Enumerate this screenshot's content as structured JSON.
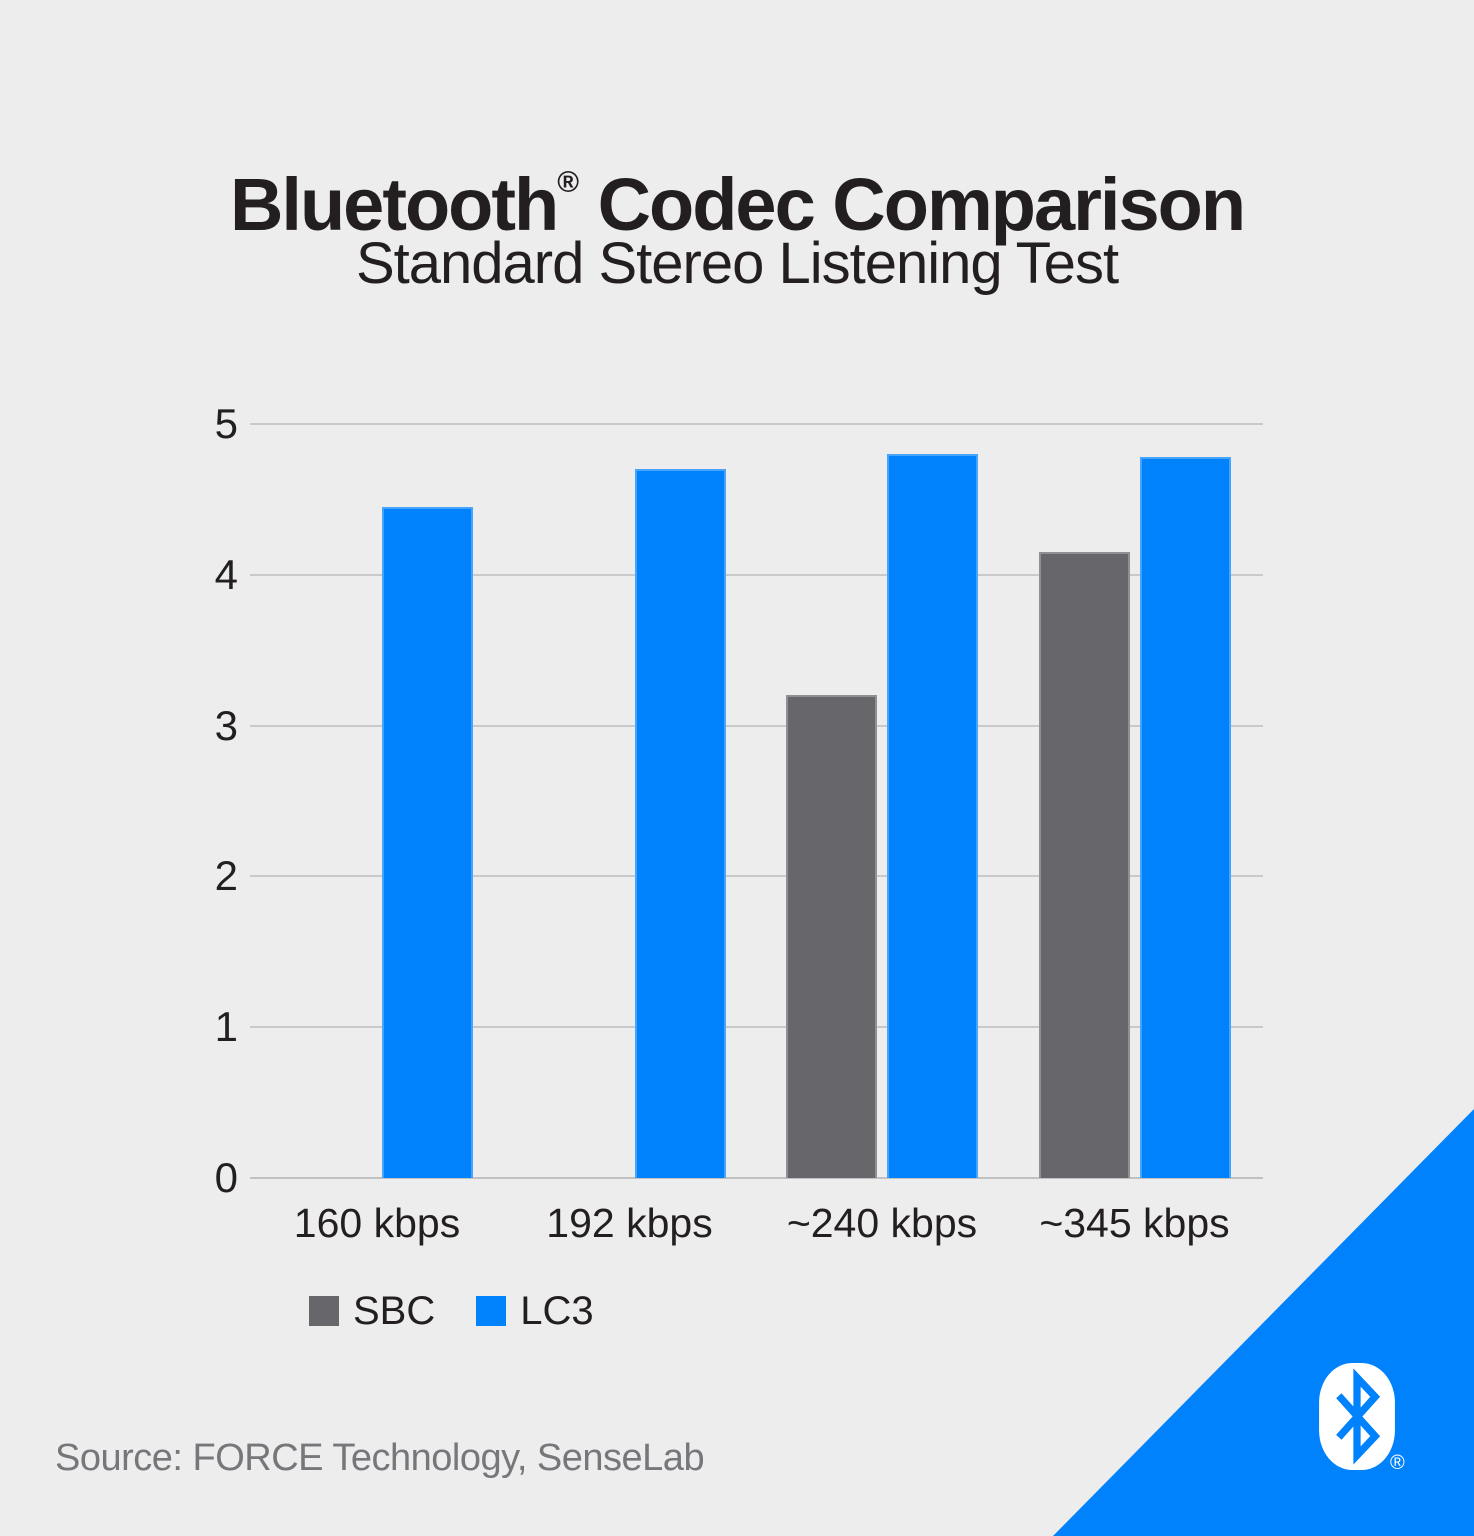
{
  "meta": {
    "background_color": "#EDEDEE",
    "text_color": "#231F20",
    "gridline_color": "#C9C9CB",
    "source_text_color": "#76777B",
    "accent_blue": "#0082FC",
    "accent_gray": "#66666B"
  },
  "header": {
    "title_brand": "Bluetooth",
    "title_reg": "®",
    "title_rest": " Codec Comparison",
    "subtitle": "Standard Stereo Listening Test"
  },
  "chart_data": {
    "type": "bar",
    "title": "Bluetooth® Codec Comparison",
    "subtitle": "Standard Stereo Listening Test",
    "categories": [
      "160 kbps",
      "192 kbps",
      "~240 kbps",
      "~345 kbps"
    ],
    "series": [
      {
        "name": "SBC",
        "color": "#66666B",
        "values": [
          null,
          null,
          3.2,
          4.15
        ]
      },
      {
        "name": "LC3",
        "color": "#0082FC",
        "values": [
          4.45,
          4.7,
          4.8,
          4.78
        ]
      }
    ],
    "ylim": [
      0,
      5
    ],
    "yticks": [
      0,
      1,
      2,
      3,
      4,
      5
    ],
    "grid": true,
    "legend_position": "bottom-left"
  },
  "legend": {
    "items": [
      {
        "label": "SBC",
        "color": "#66666B"
      },
      {
        "label": "LC3",
        "color": "#0082FC"
      }
    ]
  },
  "footer": {
    "source": "Source: FORCE Technology, SenseLab"
  },
  "branding": {
    "logo_name": "bluetooth-logo",
    "reg_mark": "®",
    "triangle_color": "#0082FC",
    "badge_color": "#FFFFFF"
  }
}
